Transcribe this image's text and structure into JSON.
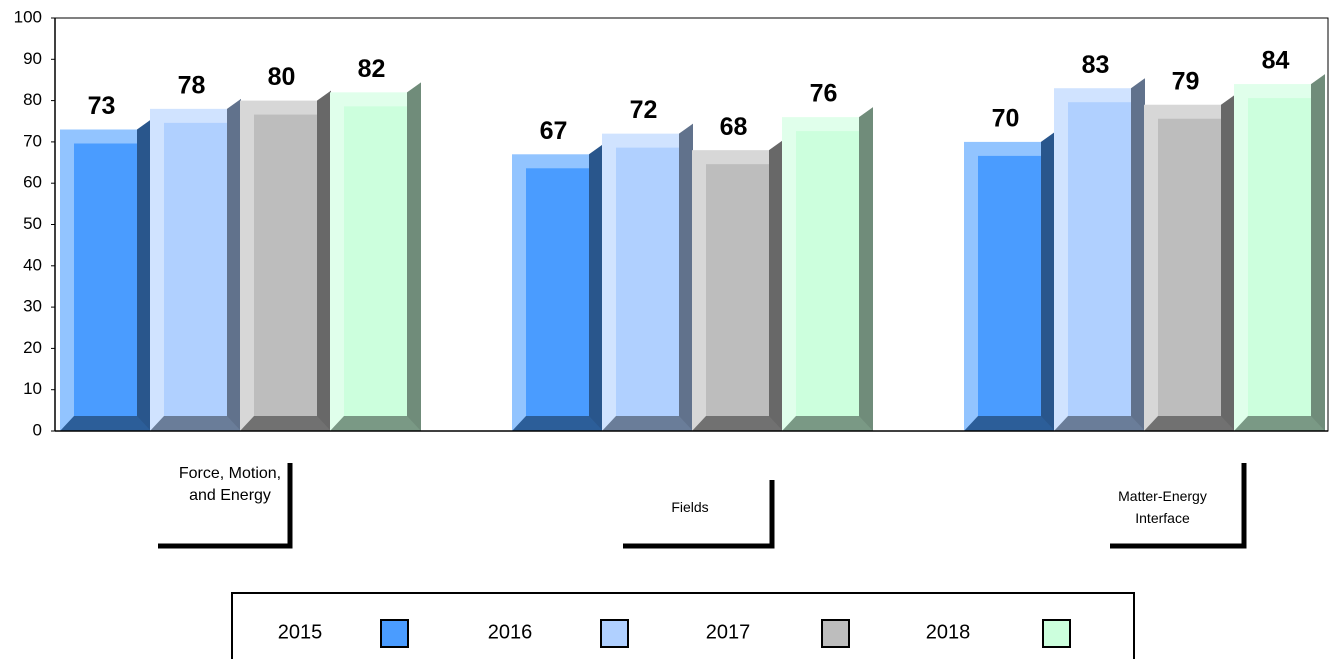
{
  "chart_data": {
    "type": "bar3d",
    "categories": [
      "Force, Motion, and Energy",
      "Fields",
      "Matter-Energy Interface"
    ],
    "series": [
      {
        "name": "2015",
        "color": "#4a9cff",
        "values": [
          73,
          67,
          70
        ]
      },
      {
        "name": "2016",
        "color": "#b0d0ff",
        "values": [
          78,
          72,
          83
        ]
      },
      {
        "name": "2017",
        "color": "#bdbdbd",
        "values": [
          80,
          68,
          79
        ]
      },
      {
        "name": "2018",
        "color": "#ccffdd",
        "values": [
          82,
          76,
          84
        ]
      }
    ],
    "ylim": [
      0,
      100
    ],
    "yticks": [
      0,
      10,
      20,
      30,
      40,
      50,
      60,
      70,
      80,
      90,
      100
    ]
  }
}
